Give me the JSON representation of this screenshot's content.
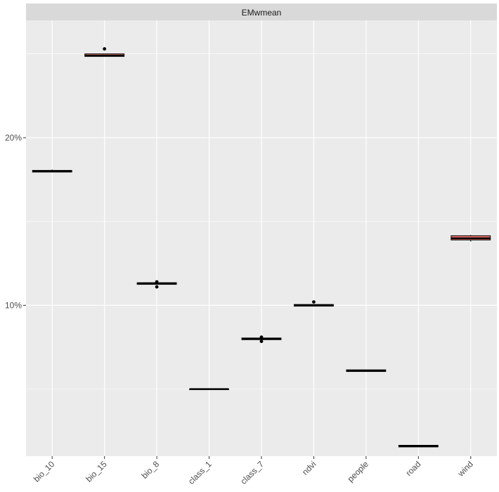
{
  "chart_data": {
    "type": "boxplot",
    "facet_title": "EMwmean",
    "y_tick_labels": [
      "10%",
      "20%"
    ],
    "y_ticks": [
      10,
      20
    ],
    "ylim": [
      1.0,
      27.0
    ],
    "y_unit": "percent",
    "grid": true,
    "legend": "none",
    "categories": [
      "bio_10",
      "bio_15",
      "bio_8",
      "class_1",
      "class_7",
      "ndvi",
      "people",
      "road",
      "wind"
    ],
    "boxes": [
      {
        "category": "bio_10",
        "q1": 17.95,
        "median": 18.0,
        "q3": 18.05,
        "whisker_low": 17.95,
        "whisker_high": 18.1,
        "outliers": []
      },
      {
        "category": "bio_15",
        "q1": 24.85,
        "median": 24.9,
        "q3": 25.0,
        "whisker_low": 24.85,
        "whisker_high": 25.0,
        "outliers": [
          25.3
        ]
      },
      {
        "category": "bio_8",
        "q1": 11.25,
        "median": 11.3,
        "q3": 11.35,
        "whisker_low": 11.25,
        "whisker_high": 11.35,
        "outliers": [
          11.1,
          11.4
        ]
      },
      {
        "category": "class_1",
        "q1": 5.0,
        "median": 5.0,
        "q3": 5.0,
        "whisker_low": 5.0,
        "whisker_high": 5.0,
        "outliers": []
      },
      {
        "category": "class_7",
        "q1": 7.95,
        "median": 8.0,
        "q3": 8.05,
        "whisker_low": 7.9,
        "whisker_high": 8.1,
        "outliers": [
          7.85,
          8.1
        ]
      },
      {
        "category": "ndvi",
        "q1": 9.95,
        "median": 10.0,
        "q3": 10.05,
        "whisker_low": 9.95,
        "whisker_high": 10.05,
        "outliers": [
          10.2
        ]
      },
      {
        "category": "people",
        "q1": 6.05,
        "median": 6.1,
        "q3": 6.15,
        "whisker_low": 6.05,
        "whisker_high": 6.15,
        "outliers": []
      },
      {
        "category": "road",
        "q1": 1.55,
        "median": 1.6,
        "q3": 1.65,
        "whisker_low": 1.55,
        "whisker_high": 1.65,
        "outliers": []
      },
      {
        "category": "wind",
        "q1": 13.9,
        "median": 14.0,
        "q3": 14.15,
        "whisker_low": 13.8,
        "whisker_high": 14.2,
        "outliers": []
      }
    ],
    "colors": {
      "panel_bg": "#ebebeb",
      "strip_bg": "#d9d9d9",
      "grid": "#ffffff",
      "box_fill": "#f8766d",
      "box_line": "#000000",
      "text": "#4d4d4d",
      "strip_text": "#1a1a1a"
    }
  }
}
